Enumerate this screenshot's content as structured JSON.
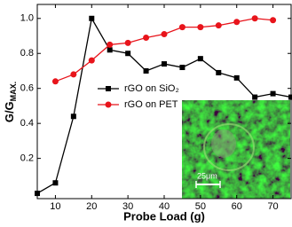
{
  "chart_data": {
    "type": "line",
    "x_label": "Probe Load (g)",
    "y_label": "G/G",
    "y_label_sub": "MAX.",
    "x": [
      5,
      10,
      15,
      20,
      25,
      30,
      35,
      40,
      45,
      50,
      55,
      60,
      65,
      70,
      75
    ],
    "series": [
      {
        "name": "rGO on SiO₂",
        "color": "#000000",
        "marker": "square",
        "values": [
          0.0,
          0.06,
          0.44,
          1.0,
          0.82,
          0.8,
          0.7,
          0.74,
          0.72,
          0.77,
          0.69,
          0.66,
          0.55,
          0.57,
          0.55
        ]
      },
      {
        "name": "rGO on PET",
        "color": "#e8141b",
        "marker": "circle",
        "values": [
          null,
          0.64,
          0.68,
          0.76,
          0.85,
          0.86,
          0.89,
          0.91,
          0.95,
          0.95,
          0.96,
          0.98,
          1.0,
          0.99,
          null
        ]
      }
    ],
    "xlim": [
      5,
      75
    ],
    "xticks": [
      10,
      20,
      30,
      40,
      50,
      60,
      70
    ],
    "ylim": [
      -0.03,
      1.08
    ],
    "yticks": [
      0.2,
      0.4,
      0.6,
      0.8,
      {
        "value": 1.0,
        "label": "1.0"
      }
    ],
    "legend": "upper-center",
    "inset_scale_label": "25μm"
  }
}
